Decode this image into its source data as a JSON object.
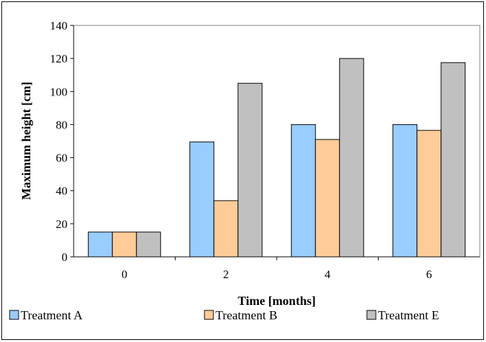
{
  "chart_data": {
    "type": "bar",
    "categories": [
      "0",
      "2",
      "4",
      "6"
    ],
    "series": [
      {
        "name": "Treatment A",
        "values": [
          15,
          69.5,
          80,
          80
        ],
        "color": "#99ccff"
      },
      {
        "name": "Treatment B",
        "values": [
          15,
          34,
          71,
          76.5
        ],
        "color": "#ffcc99"
      },
      {
        "name": "Treatment E",
        "values": [
          15,
          105,
          120,
          117.5
        ],
        "color": "#c0c0c0"
      }
    ],
    "xlabel": "Time [months]",
    "ylabel": "Maximum height [cm]",
    "ylim": [
      0,
      140
    ],
    "yticks": [
      "0",
      "20",
      "40",
      "60",
      "80",
      "100",
      "120",
      "140"
    ],
    "grid": false,
    "legend_position": "bottom"
  }
}
